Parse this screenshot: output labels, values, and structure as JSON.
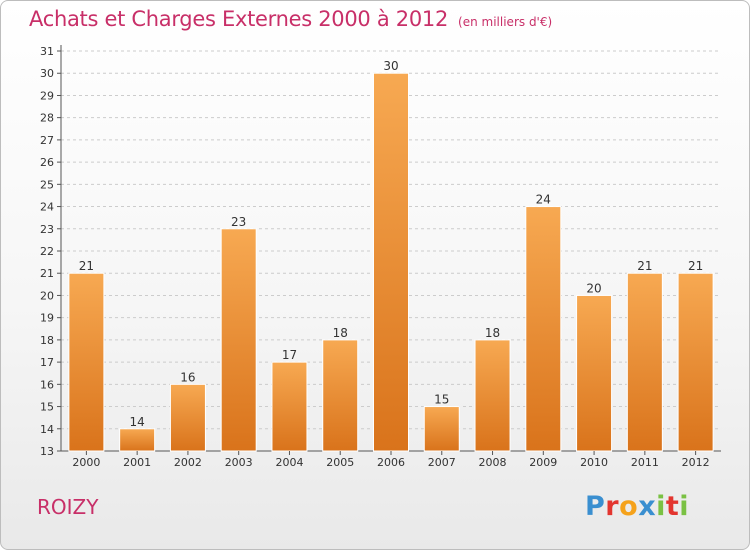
{
  "header": {
    "title": "Achats et Charges Externes 2000 à 2012",
    "unit_note": "(en milliers d'€)"
  },
  "footer": {
    "commune": "ROIZY",
    "brand_letters": [
      "P",
      "r",
      "o",
      "x",
      "i",
      "t",
      "i"
    ],
    "brand_colors": [
      "#3a8fd0",
      "#e3352f",
      "#f5a21b",
      "#3a8fd0",
      "#7ac143",
      "#e3352f",
      "#7ac143"
    ]
  },
  "colors": {
    "title": "#c82f68",
    "bar_light": "#f7a952",
    "bar_dark": "#d9731b",
    "axis": "#555555",
    "grid": "#cccccc"
  },
  "chart_data": {
    "type": "bar",
    "categories": [
      "2000",
      "2001",
      "2002",
      "2003",
      "2004",
      "2005",
      "2006",
      "2007",
      "2008",
      "2009",
      "2010",
      "2011",
      "2012"
    ],
    "values": [
      21,
      14,
      16,
      23,
      17,
      18,
      30,
      15,
      18,
      24,
      20,
      21,
      21
    ],
    "ylim": [
      13,
      31
    ],
    "yticks": [
      13,
      14,
      15,
      16,
      17,
      18,
      19,
      20,
      21,
      22,
      23,
      24,
      25,
      26,
      27,
      28,
      29,
      30,
      31
    ],
    "grid": "horizontal dashed",
    "data_labels": true
  }
}
